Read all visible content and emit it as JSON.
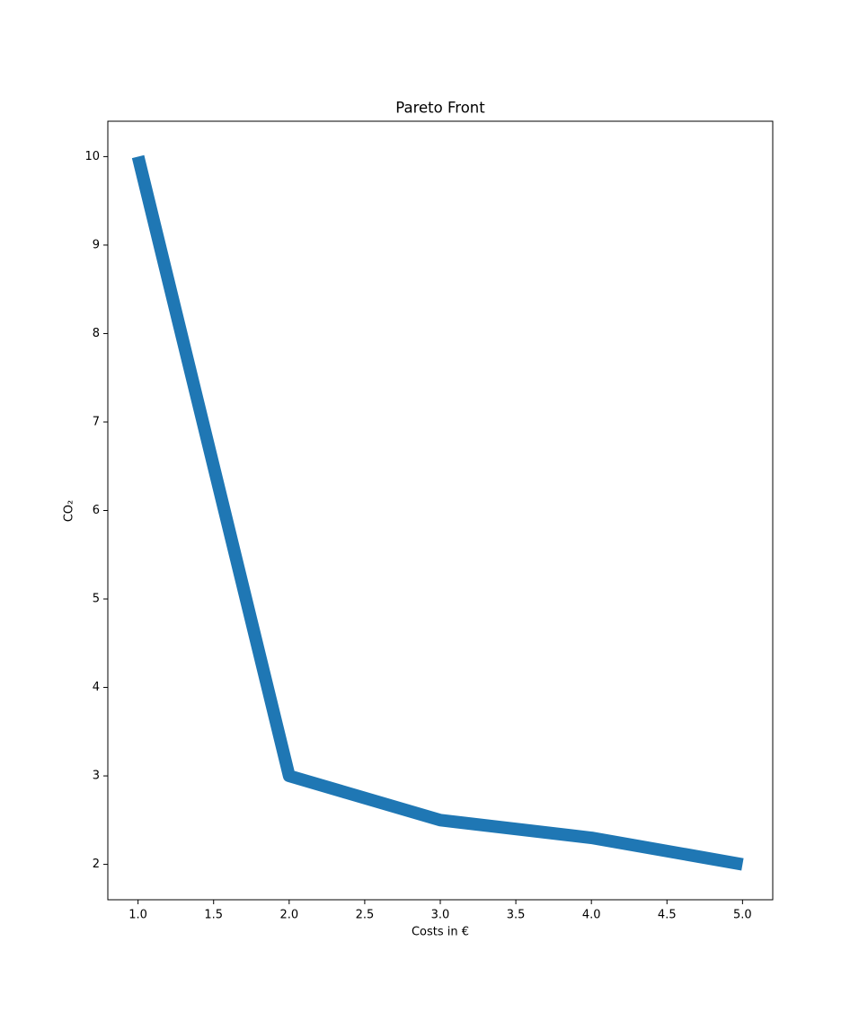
{
  "chart_data": {
    "type": "line",
    "title": "Pareto Front",
    "xlabel": "Costs in €",
    "ylabel": "CO₂",
    "x": [
      1,
      2,
      3,
      4,
      5
    ],
    "series": [
      {
        "color": "#1f77b4",
        "values": [
          10,
          3,
          2.5,
          2.3,
          2
        ]
      }
    ],
    "xlim": [
      0.8,
      5.2
    ],
    "xticks": [
      {
        "value": 1,
        "label": "1.0"
      },
      1.5,
      {
        "value": 2,
        "label": "2.0"
      },
      2.5,
      {
        "value": 3,
        "label": "3.0"
      },
      3.5,
      {
        "value": 4,
        "label": "4.0"
      },
      4.5,
      {
        "value": 5,
        "label": "5.0"
      }
    ],
    "ylim": [
      1.6,
      10.4
    ],
    "yticks": [
      2,
      3,
      4,
      5,
      6,
      7,
      8,
      9,
      10
    ],
    "grid": false
  }
}
